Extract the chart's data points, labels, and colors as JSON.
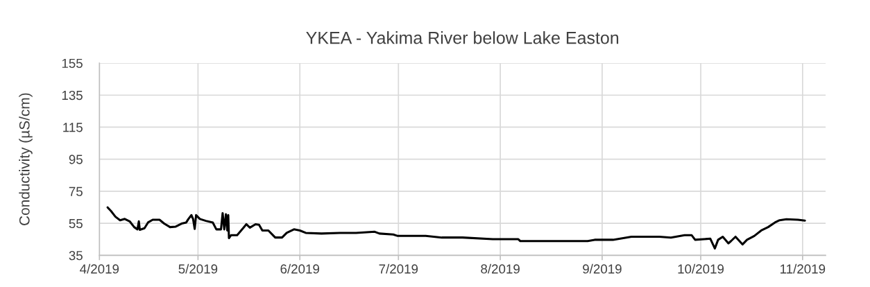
{
  "chart_data": {
    "type": "line",
    "title": "YKEA - Yakima River below Lake Easton",
    "ylabel": "Conductivity (µS/cm)",
    "x": [
      "2019-04-03T12:00",
      "2019-04-04T12:00",
      "2019-04-05T21:00",
      "2019-04-07T07:00",
      "2019-04-08T17:00",
      "2019-04-10T05:00",
      "2019-04-11T14:00",
      "2019-04-12T14:00",
      "2019-04-13T00:00",
      "2019-04-13T07:00",
      "2019-04-14T17:00",
      "2019-04-15T19:00",
      "2019-04-17T05:00",
      "2019-04-19T07:00",
      "2019-04-20T17:00",
      "2019-04-22T12:00",
      "2019-04-24T05:00",
      "2019-04-26T00:00",
      "2019-04-27T10:00",
      "2019-04-28T02:00",
      "2019-04-29T00:00",
      "2019-04-29T12:00",
      "2019-04-30T00:00",
      "2019-04-30T10:00",
      "2019-05-01T14:00",
      "2019-05-03T10:00",
      "2019-05-05T12:00",
      "2019-05-06T14:00",
      "2019-05-08T00:00",
      "2019-05-08T12:00",
      "2019-05-09T00:00",
      "2019-05-09T12:00",
      "2019-05-09T22:00",
      "2019-05-10T05:00",
      "2019-05-10T10:00",
      "2019-05-11T02:00",
      "2019-05-12T22:00",
      "2019-05-14T17:00",
      "2019-05-15T17:00",
      "2019-05-16T19:00",
      "2019-05-18T12:00",
      "2019-05-19T14:00",
      "2019-05-20T14:00",
      "2019-05-22T10:00",
      "2019-05-24T12:00",
      "2019-05-26T14:00",
      "2019-05-28T00:00",
      "2019-05-30T05:00",
      "2019-06-01T00:00",
      "2019-06-02T19:00",
      "2019-06-07T14:00",
      "2019-06-13T05:00",
      "2019-06-16T19:00",
      "2019-06-18T02:00",
      "2019-06-23T19:00",
      "2019-06-25T05:00",
      "2019-06-29T10:00",
      "2019-06-30T19:00",
      "2019-07-09T07:00",
      "2019-07-14T05:00",
      "2019-07-20T12:00",
      "2019-07-29T17:00",
      "2019-08-06T10:00",
      "2019-08-07T02:00",
      "2019-08-27T14:00",
      "2019-08-29T17:00",
      "2019-09-04T07:00",
      "2019-09-09T22:00",
      "2019-09-18T10:00",
      "2019-09-21T22:00",
      "2019-09-26T02:00",
      "2019-09-28T05:00",
      "2019-09-29T07:00",
      "2019-10-03T22:00",
      "2019-10-05T07:00",
      "2019-10-06T07:00",
      "2019-10-07T17:00",
      "2019-10-09T10:00",
      "2019-10-10T05:00",
      "2019-10-11T14:00",
      "2019-10-13T17:00",
      "2019-10-15T02:00",
      "2019-10-17T07:00",
      "2019-10-19T10:00",
      "2019-10-21T12:00",
      "2019-10-23T14:00",
      "2019-10-25T00:00",
      "2019-10-27T02:00",
      "2019-10-30T14:00",
      "2019-11-01T17:00"
    ],
    "series": [
      {
        "color": "#000000",
        "values": [
          64.9,
          62.7,
          59.1,
          56.9,
          57.7,
          56.2,
          52.6,
          51.2,
          56.2,
          50.9,
          51.9,
          55.5,
          57.2,
          57.2,
          54.8,
          52.6,
          52.9,
          54.8,
          55.5,
          57.7,
          60.1,
          57.7,
          51.5,
          60.1,
          57.7,
          56.5,
          55.5,
          51.2,
          51.2,
          61.3,
          51.2,
          60.6,
          50.5,
          60.1,
          45.7,
          47.6,
          47.6,
          51.9,
          54.4,
          52.3,
          54.4,
          54.1,
          50.5,
          50.5,
          46.1,
          46.1,
          49.0,
          51.2,
          50.5,
          49.0,
          48.6,
          49.0,
          49.0,
          49.0,
          49.7,
          48.6,
          48.0,
          47.1,
          47.1,
          46.1,
          46.1,
          45.1,
          45.1,
          43.9,
          43.9,
          44.7,
          44.7,
          46.6,
          46.6,
          46.1,
          47.6,
          47.6,
          44.7,
          45.4,
          39.3,
          44.7,
          46.6,
          42.5,
          43.9,
          46.6,
          41.8,
          44.7,
          47.1,
          50.5,
          52.6,
          55.5,
          56.9,
          57.5,
          57.2,
          56.7
        ]
      }
    ],
    "xlim": [
      "2019-04-01",
      "2019-11-08"
    ],
    "xticks": [
      {
        "value": "2019-04-01",
        "label": "4/2019"
      },
      {
        "value": "2019-05-01",
        "label": "5/2019"
      },
      {
        "value": "2019-06-01",
        "label": "6/2019"
      },
      {
        "value": "2019-07-01",
        "label": "7/2019"
      },
      {
        "value": "2019-08-01",
        "label": "8/2019"
      },
      {
        "value": "2019-09-01",
        "label": "9/2019"
      },
      {
        "value": "2019-10-01",
        "label": "10/2019"
      },
      {
        "value": "2019-11-01",
        "label": "11/2019"
      }
    ],
    "ylim": [
      35,
      155
    ],
    "yticks": [
      35,
      55,
      75,
      95,
      115,
      135,
      155
    ],
    "grid": true,
    "marker": "none",
    "line_style": "solid"
  }
}
